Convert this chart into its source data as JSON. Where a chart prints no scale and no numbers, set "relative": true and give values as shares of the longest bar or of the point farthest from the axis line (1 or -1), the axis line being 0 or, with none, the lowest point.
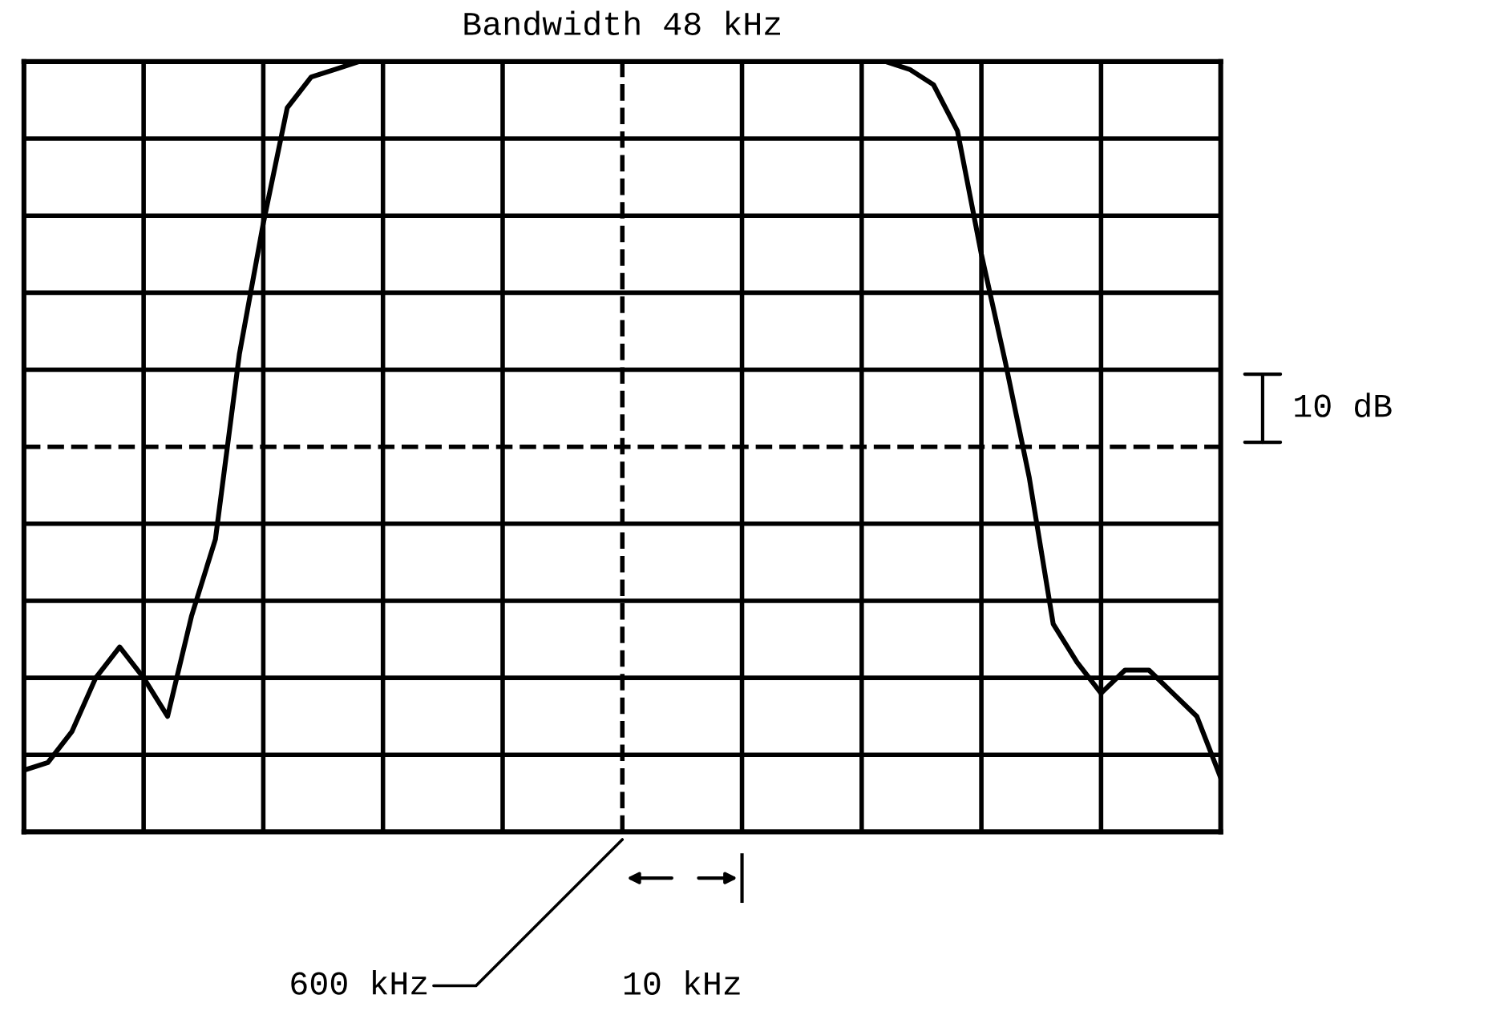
{
  "chart_data": {
    "type": "line",
    "title": "Bandwidth 48 kHz",
    "categories": [
      null,
      null,
      null,
      null,
      null,
      null,
      null,
      null,
      null,
      null,
      null,
      null,
      null,
      null,
      null,
      null,
      null,
      null,
      null,
      null,
      null,
      null,
      null,
      null,
      null,
      null,
      null,
      null,
      null,
      null,
      null,
      null,
      null,
      null,
      null,
      null,
      null,
      null,
      null,
      null,
      null,
      null,
      null,
      null,
      null,
      null,
      null,
      null,
      null,
      null,
      null
    ],
    "relative": true,
    "series": [
      {
        "color": "#000000",
        "values": [
          0.08,
          0.09,
          0.13,
          0.2,
          0.24,
          0.2,
          0.15,
          0.28,
          0.38,
          0.62,
          0.79,
          0.94,
          0.98,
          0.99,
          1,
          1,
          1,
          1,
          1,
          1,
          1,
          1,
          1,
          1,
          1,
          1,
          1,
          1,
          1,
          1,
          1,
          1,
          1,
          1,
          1,
          1,
          1,
          0.99,
          0.97,
          0.91,
          0.75,
          0.61,
          0.46,
          0.27,
          0.22,
          0.18,
          0.21,
          0.21,
          0.18,
          0.15,
          0.07
        ]
      }
    ],
    "grid": true,
    "ref_lines": [
      {
        "axis": "y",
        "value": 0.5,
        "line_style": "dashed",
        "color": "#000000"
      }
    ],
    "marker": "none",
    "line_style": "solid",
    "annotations": [
      "600 kHz",
      "10 kHz",
      "10 dB"
    ]
  }
}
